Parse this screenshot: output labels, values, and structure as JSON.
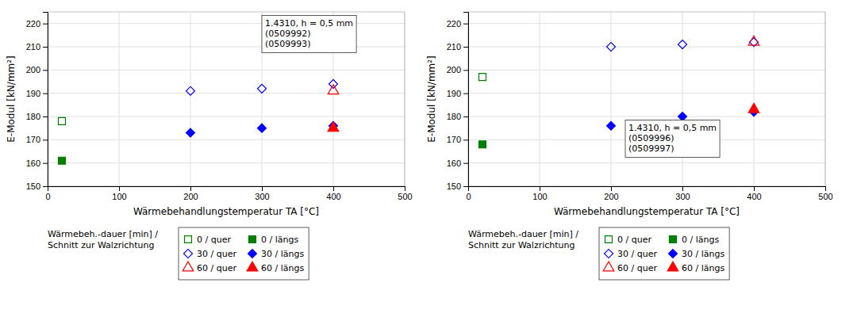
{
  "chart_data": [
    {
      "type": "scatter",
      "xlabel": "Wärmebehandlungstemperatur TA [°C]",
      "ylabel": "E-Modul [kN/mm²]",
      "annotation": "1.4310, h = 0,5 mm\n(0509992)\n(0509993)",
      "legend_title": "Wärmebeh.-dauer [min] /\nSchnitt zur Walzrichtung",
      "xlim": [
        0,
        500
      ],
      "ylim": [
        150,
        225
      ],
      "xticks": [
        0,
        100,
        200,
        300,
        400,
        500
      ],
      "yticks": [
        150,
        160,
        170,
        180,
        190,
        200,
        210,
        220
      ],
      "grid": true,
      "series": [
        {
          "name": "0 / quer",
          "color": "#008000",
          "marker": "square-open",
          "x": [
            20
          ],
          "values": [
            178
          ]
        },
        {
          "name": "0 / längs",
          "color": "#008000",
          "marker": "square",
          "x": [
            20
          ],
          "values": [
            161
          ]
        },
        {
          "name": "30 / quer",
          "color": "#0000ff",
          "marker": "diamond-open",
          "x": [
            200,
            300,
            400
          ],
          "values": [
            191,
            192,
            194
          ]
        },
        {
          "name": "30 / längs",
          "color": "#0000ff",
          "marker": "diamond",
          "x": [
            200,
            300,
            400
          ],
          "values": [
            173,
            175,
            176
          ]
        },
        {
          "name": "60 / quer",
          "color": "#ff0000",
          "marker": "triangle-open",
          "x": [
            400
          ],
          "values": [
            191
          ]
        },
        {
          "name": "60 / längs",
          "color": "#ff0000",
          "marker": "triangle",
          "x": [
            400
          ],
          "values": [
            175
          ]
        }
      ]
    },
    {
      "type": "scatter",
      "xlabel": "Wärmebehandlungstemperatur TA [°C]",
      "ylabel": "E-Modul [kN/mm²]",
      "annotation": "1.4310, h = 0,5 mm\n(0509996)\n(0509997)",
      "legend_title": "Wärmebeh.-dauer [min] /\nSchnitt zur Walzrichtung",
      "xlim": [
        0,
        500
      ],
      "ylim": [
        150,
        225
      ],
      "xticks": [
        0,
        100,
        200,
        300,
        400,
        500
      ],
      "yticks": [
        150,
        160,
        170,
        180,
        190,
        200,
        210,
        220
      ],
      "grid": true,
      "series": [
        {
          "name": "0 / quer",
          "color": "#008000",
          "marker": "square-open",
          "x": [
            20
          ],
          "values": [
            197
          ]
        },
        {
          "name": "0 / längs",
          "color": "#008000",
          "marker": "square",
          "x": [
            20
          ],
          "values": [
            168
          ]
        },
        {
          "name": "30 / quer",
          "color": "#0000ff",
          "marker": "diamond-open",
          "x": [
            200,
            300,
            400
          ],
          "values": [
            210,
            211,
            212
          ]
        },
        {
          "name": "30 / längs",
          "color": "#0000ff",
          "marker": "diamond",
          "x": [
            200,
            300,
            400
          ],
          "values": [
            176,
            180,
            182
          ]
        },
        {
          "name": "60 / quer",
          "color": "#ff0000",
          "marker": "triangle-open",
          "x": [
            400
          ],
          "values": [
            212
          ]
        },
        {
          "name": "60 / längs",
          "color": "#ff0000",
          "marker": "triangle",
          "x": [
            400
          ],
          "values": [
            183
          ]
        }
      ]
    }
  ]
}
